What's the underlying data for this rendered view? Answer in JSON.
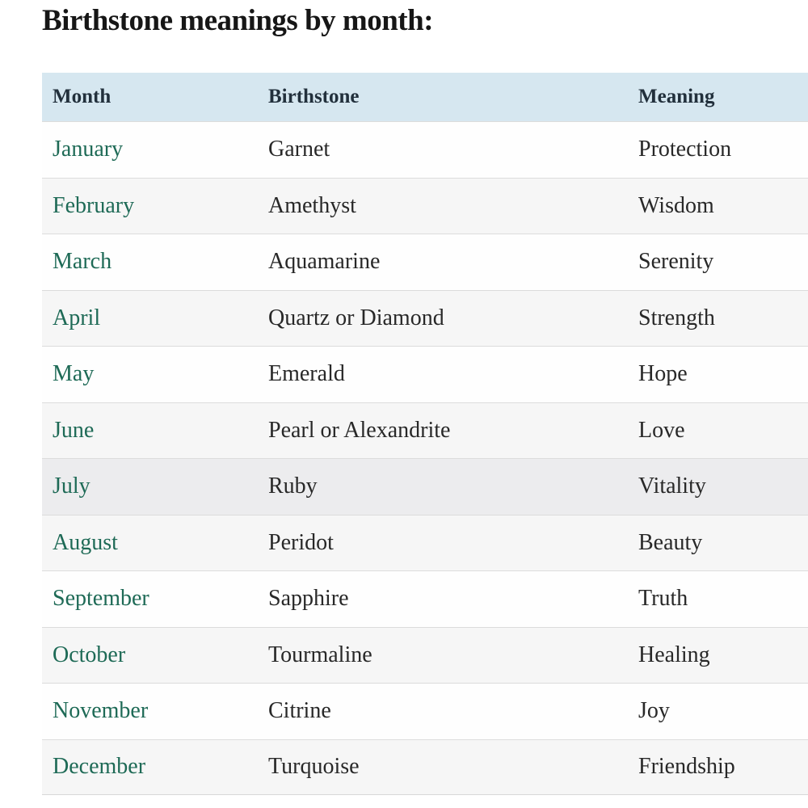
{
  "page": {
    "title": "Birthstone meanings by month:"
  },
  "table": {
    "columns": {
      "month": "Month",
      "birthstone": "Birthstone",
      "meaning": "Meaning"
    },
    "rows": [
      {
        "month": "January",
        "birthstone": "Garnet",
        "meaning": "Protection"
      },
      {
        "month": "February",
        "birthstone": "Amethyst",
        "meaning": "Wisdom"
      },
      {
        "month": "March",
        "birthstone": "Aquamarine",
        "meaning": "Serenity"
      },
      {
        "month": "April",
        "birthstone": "Quartz or Diamond",
        "meaning": "Strength"
      },
      {
        "month": "May",
        "birthstone": "Emerald",
        "meaning": "Hope"
      },
      {
        "month": "June",
        "birthstone": "Pearl or Alexandrite",
        "meaning": "Love"
      },
      {
        "month": "July",
        "birthstone": "Ruby",
        "meaning": "Vitality"
      },
      {
        "month": "August",
        "birthstone": "Peridot",
        "meaning": "Beauty"
      },
      {
        "month": "September",
        "birthstone": "Sapphire",
        "meaning": "Truth"
      },
      {
        "month": "October",
        "birthstone": "Tourmaline",
        "meaning": "Healing"
      },
      {
        "month": "November",
        "birthstone": "Citrine",
        "meaning": "Joy"
      },
      {
        "month": "December",
        "birthstone": "Turquoise",
        "meaning": "Friendship"
      }
    ],
    "highlighted_row": "July"
  },
  "colors": {
    "header_background": "#d6e7f0",
    "header_text": "#22303c",
    "month_link_green": "#1e6a56",
    "body_text": "#282828",
    "row_alt_background": "#f6f6f6",
    "row_highlight_background": "#ececee",
    "divider": "#dcdcdc"
  }
}
